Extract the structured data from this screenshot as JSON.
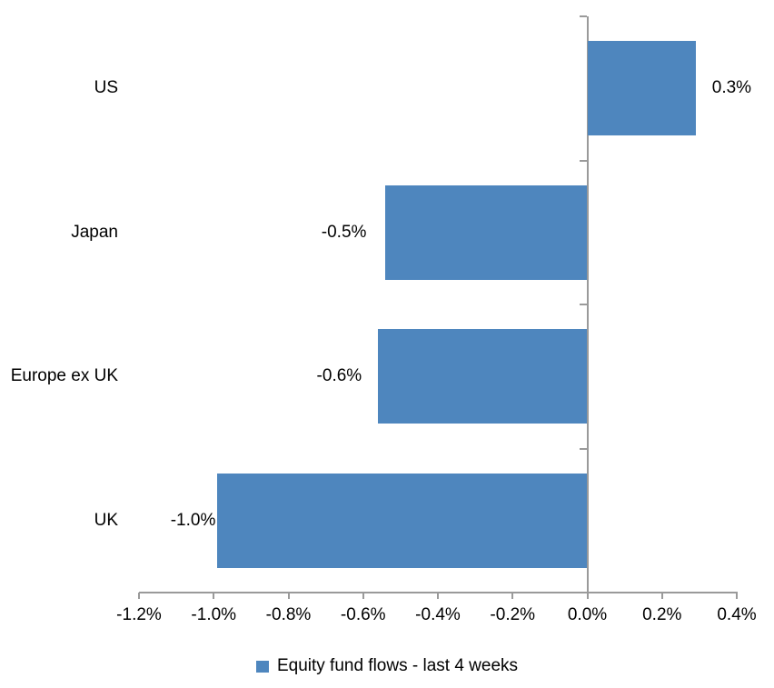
{
  "chart_data": {
    "type": "bar",
    "orientation": "horizontal",
    "title": "",
    "xlabel": "",
    "ylabel": "",
    "categories": [
      "US",
      "Japan",
      "Europe ex UK",
      "UK"
    ],
    "series": [
      {
        "name": "Equity fund flows - last 4 weeks",
        "values": [
          0.29,
          -0.54,
          -0.56,
          -0.99
        ],
        "data_labels": [
          "0.3%",
          "-0.5%",
          "-0.6%",
          "-1.0%"
        ]
      }
    ],
    "unit": "%",
    "xlim": [
      -1.2,
      0.4
    ],
    "x_tick_values": [
      -1.2,
      -1.0,
      -0.8,
      -0.6,
      -0.4,
      -0.2,
      0.0,
      0.2,
      0.4
    ],
    "x_tick_labels": [
      "-1.2%",
      "-1.0%",
      "-0.8%",
      "-0.6%",
      "-0.4%",
      "-0.2%",
      "0.0%",
      "0.2%",
      "0.4%"
    ],
    "grid": "off",
    "legend_position": "bottom",
    "legend": "Equity fund flows - last 4 weeks",
    "colors": {
      "bar": "#4E86BE",
      "axis": "#9A9A9A",
      "text": "#000000",
      "background": "#FFFFFF"
    }
  }
}
